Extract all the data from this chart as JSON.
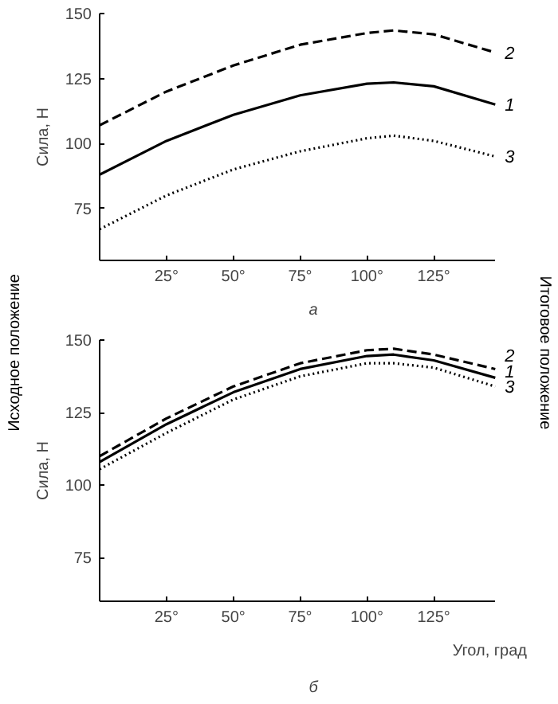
{
  "chart_data": [
    {
      "type": "line",
      "ylabel": "Сила, Н",
      "x": [
        0,
        25,
        50,
        75,
        100,
        110,
        125,
        148
      ],
      "series": [
        {
          "name": "1",
          "color": "#000000",
          "line_style": "solid",
          "values": [
            88,
            101,
            111,
            118.5,
            123,
            123.5,
            122,
            115
          ]
        },
        {
          "name": "2",
          "color": "#000000",
          "line_style": "dashed",
          "values": [
            107,
            120,
            130,
            138,
            142.5,
            143.5,
            142,
            135
          ]
        },
        {
          "name": "3",
          "color": "#000000",
          "line_style": "dotted",
          "values": [
            67,
            80,
            90,
            97,
            102,
            103,
            101,
            95
          ]
        }
      ],
      "xlim": [
        0,
        148
      ],
      "ylim": [
        55,
        150
      ],
      "xticks": [
        {
          "value": 25,
          "label": "25°"
        },
        {
          "value": 50,
          "label": "50°"
        },
        {
          "value": 75,
          "label": "75°"
        },
        {
          "value": 100,
          "label": "100°"
        },
        {
          "value": 125,
          "label": "125°"
        }
      ],
      "yticks": [
        75,
        100,
        125,
        150
      ],
      "grid": false,
      "marker": "none",
      "annotations": [
        "а",
        "Исходное положение",
        "Итоговое положение"
      ]
    },
    {
      "type": "line",
      "ylabel": "Сила, Н",
      "xlabel": "Угол, град",
      "x": [
        0,
        25,
        50,
        75,
        100,
        110,
        125,
        148
      ],
      "series": [
        {
          "name": "2",
          "color": "#000000",
          "line_style": "dashed",
          "values": [
            110,
            123,
            134,
            142,
            146.5,
            147,
            145,
            140
          ]
        },
        {
          "name": "1",
          "color": "#000000",
          "line_style": "solid",
          "values": [
            108,
            121,
            132,
            140,
            144.5,
            145,
            143,
            137
          ]
        },
        {
          "name": "3",
          "color": "#000000",
          "line_style": "dotted",
          "values": [
            105.5,
            118,
            129.5,
            137.5,
            142,
            142,
            140.5,
            134
          ]
        }
      ],
      "xlim": [
        0,
        148
      ],
      "ylim": [
        60,
        150
      ],
      "xticks": [
        {
          "value": 25,
          "label": "25°"
        },
        {
          "value": 50,
          "label": "50°"
        },
        {
          "value": 75,
          "label": "75°"
        },
        {
          "value": 100,
          "label": "100°"
        },
        {
          "value": 125,
          "label": "125°"
        }
      ],
      "yticks": [
        75,
        100,
        125,
        150
      ],
      "grid": false,
      "marker": "none",
      "annotations": [
        "б"
      ]
    }
  ]
}
